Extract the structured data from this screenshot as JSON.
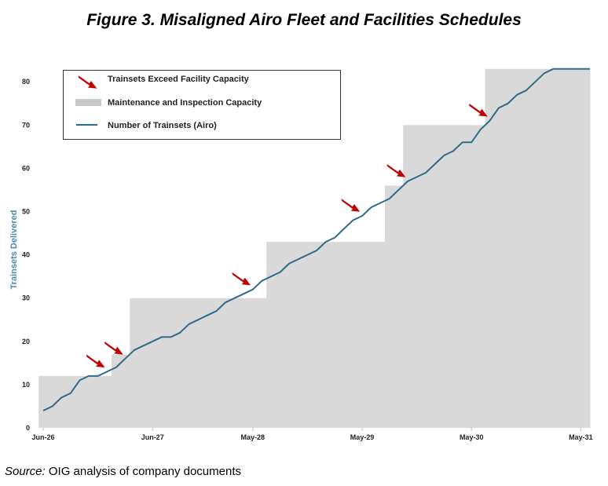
{
  "title": "Figure 3. Misaligned Airo Fleet and Facilities Schedules",
  "source": {
    "label": "Source:",
    "text": " OIG analysis of company documents"
  },
  "chart_data": {
    "type": "line",
    "title": "Figure 3. Misaligned Airo Fleet and Facilities Schedules",
    "xlabel": "",
    "ylabel": "Trainsets Delivered",
    "ylim": [
      0,
      80
    ],
    "yticks": [
      0,
      10,
      20,
      30,
      40,
      50,
      60,
      70,
      80
    ],
    "xticks": [
      {
        "label": "Jun-26",
        "x": "2026-06"
      },
      {
        "label": "Jun-27",
        "x": "2027-06"
      },
      {
        "label": "May-28",
        "x": "2028-05"
      },
      {
        "label": "May-29",
        "x": "2029-05"
      },
      {
        "label": "May-30",
        "x": "2030-05"
      },
      {
        "label": "May-31",
        "x": "2031-05"
      }
    ],
    "grid": false,
    "legend_placement": "top-left",
    "legend": [
      {
        "name": "Trainsets Exceed Facility Capacity",
        "kind": "arrow"
      },
      {
        "name": "Maintenance and Inspection Capacity",
        "kind": "area"
      },
      {
        "name": "Number of Trainsets (Airo)",
        "kind": "line"
      }
    ],
    "colors": {
      "line": "#2f6a88",
      "capacity": "#d9d9d9",
      "arrow": "#c00000",
      "ylabel": "#4a8ca6"
    },
    "series": [
      {
        "name": "Number of Trainsets (Airo)",
        "x": [
          "2026-06",
          "2026-07",
          "2026-08",
          "2026-09",
          "2026-10",
          "2026-11",
          "2026-12",
          "2027-01",
          "2027-02",
          "2027-03",
          "2027-04",
          "2027-05",
          "2027-06",
          "2027-07",
          "2027-08",
          "2027-09",
          "2027-10",
          "2027-11",
          "2027-12",
          "2028-01",
          "2028-02",
          "2028-03",
          "2028-04",
          "2028-05",
          "2028-06",
          "2028-07",
          "2028-08",
          "2028-09",
          "2028-10",
          "2028-11",
          "2028-12",
          "2029-01",
          "2029-02",
          "2029-03",
          "2029-04",
          "2029-05",
          "2029-06",
          "2029-07",
          "2029-08",
          "2029-09",
          "2029-10",
          "2029-11",
          "2029-12",
          "2030-01",
          "2030-02",
          "2030-03",
          "2030-04",
          "2030-05",
          "2030-06",
          "2030-07",
          "2030-08",
          "2030-09",
          "2030-10",
          "2030-11",
          "2030-12",
          "2031-01",
          "2031-02",
          "2031-03",
          "2031-04",
          "2031-05",
          "2031-06"
        ],
        "values": [
          4,
          5,
          7,
          8,
          11,
          12,
          12,
          13,
          14,
          16,
          18,
          19,
          20,
          21,
          21,
          22,
          24,
          25,
          26,
          27,
          29,
          30,
          31,
          32,
          34,
          35,
          36,
          38,
          39,
          40,
          41,
          43,
          44,
          46,
          48,
          49,
          51,
          52,
          53,
          55,
          57,
          58,
          59,
          61,
          63,
          64,
          66,
          66,
          69,
          71,
          74,
          75,
          77,
          78,
          80,
          82,
          83,
          83,
          83,
          83,
          83
        ]
      }
    ],
    "capacity_steps": [
      {
        "from": "2026-06",
        "capacity": 12
      },
      {
        "from": "2027-02",
        "capacity": 17
      },
      {
        "from": "2027-04",
        "capacity": 30
      },
      {
        "from": "2028-07",
        "capacity": 43
      },
      {
        "from": "2029-08",
        "capacity": 56
      },
      {
        "from": "2029-10",
        "capacity": 70
      },
      {
        "from": "2030-07",
        "capacity": 83
      }
    ],
    "capacity_end": "2031-06",
    "exceed_arrows": [
      "2027-01",
      "2027-03",
      "2028-05",
      "2029-05",
      "2029-10",
      "2030-07"
    ]
  }
}
